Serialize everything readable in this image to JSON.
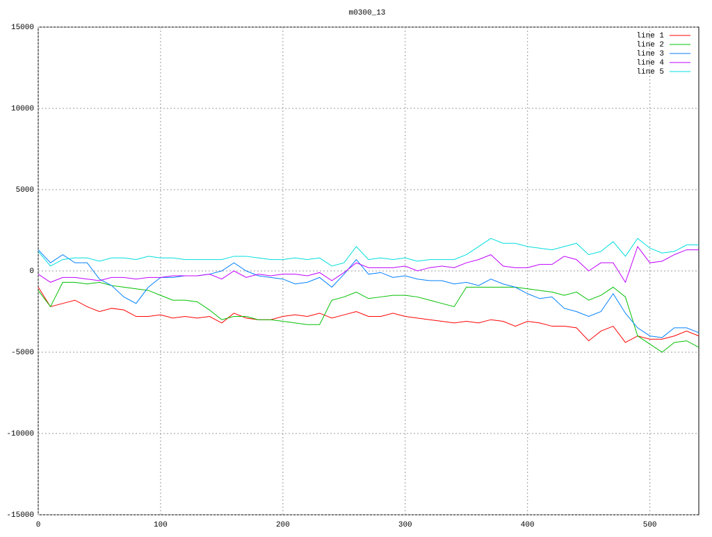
{
  "chart_data": {
    "type": "line",
    "title": "m0300_13",
    "x": [
      0,
      10,
      20,
      30,
      40,
      50,
      60,
      70,
      80,
      90,
      100,
      110,
      120,
      130,
      140,
      150,
      160,
      170,
      180,
      190,
      200,
      210,
      220,
      230,
      240,
      250,
      260,
      270,
      280,
      290,
      300,
      310,
      320,
      330,
      340,
      350,
      360,
      370,
      380,
      390,
      400,
      410,
      420,
      430,
      440,
      450,
      460,
      470,
      480,
      490,
      500,
      510,
      520,
      530,
      540
    ],
    "xlim": [
      0,
      540
    ],
    "xticks": [
      0,
      100,
      200,
      300,
      400,
      500
    ],
    "ylim": [
      -15000,
      15000
    ],
    "yticks": [
      -15000,
      -10000,
      -5000,
      0,
      5000,
      10000,
      15000
    ],
    "grid": true,
    "legend": "top-right",
    "series": [
      {
        "name": "line 1",
        "color": "#ff0000",
        "values": [
          -1000,
          -2200,
          -2000,
          -1800,
          -2200,
          -2500,
          -2300,
          -2400,
          -2800,
          -2800,
          -2700,
          -2900,
          -2800,
          -2900,
          -2800,
          -3200,
          -2600,
          -2900,
          -3000,
          -3000,
          -2800,
          -2700,
          -2800,
          -2600,
          -2900,
          -2700,
          -2500,
          -2800,
          -2800,
          -2600,
          -2800,
          -2900,
          -3000,
          -3100,
          -3200,
          -3100,
          -3200,
          -3000,
          -3100,
          -3400,
          -3100,
          -3200,
          -3400,
          -3400,
          -3500,
          -4300,
          -3700,
          -3400,
          -4400,
          -4000,
          -4200,
          -4200,
          -4000,
          -3700,
          -4000
        ]
      },
      {
        "name": "line 2",
        "color": "#00c000",
        "values": [
          -1200,
          -2200,
          -700,
          -700,
          -800,
          -700,
          -900,
          -1000,
          -1100,
          -1200,
          -1500,
          -1800,
          -1800,
          -1900,
          -2400,
          -3000,
          -2800,
          -2800,
          -3000,
          -3000,
          -3100,
          -3200,
          -3300,
          -3300,
          -1800,
          -1600,
          -1300,
          -1700,
          -1600,
          -1500,
          -1500,
          -1600,
          -1800,
          -2000,
          -2200,
          -1000,
          -1000,
          -1000,
          -1000,
          -1000,
          -1100,
          -1200,
          -1300,
          -1500,
          -1300,
          -1800,
          -1500,
          -1000,
          -1600,
          -4000,
          -4500,
          -5000,
          -4400,
          -4300,
          -4700
        ]
      },
      {
        "name": "line 3",
        "color": "#0080ff",
        "values": [
          1300,
          500,
          1000,
          500,
          500,
          -500,
          -900,
          -1600,
          -2000,
          -1000,
          -400,
          -400,
          -300,
          -300,
          -200,
          0,
          500,
          0,
          -300,
          -400,
          -500,
          -800,
          -700,
          -400,
          -1000,
          -200,
          700,
          -200,
          -100,
          -400,
          -300,
          -500,
          -600,
          -600,
          -800,
          -700,
          -900,
          -500,
          -800,
          -1000,
          -1400,
          -1700,
          -1600,
          -2300,
          -2500,
          -2800,
          -2500,
          -1400,
          -2600,
          -3500,
          -4000,
          -4100,
          -3500,
          -3500,
          -3800
        ]
      },
      {
        "name": "line 4",
        "color": "#c000ff",
        "values": [
          -200,
          -700,
          -400,
          -400,
          -500,
          -600,
          -400,
          -400,
          -500,
          -400,
          -400,
          -300,
          -300,
          -300,
          -200,
          -500,
          0,
          -400,
          -200,
          -300,
          -200,
          -200,
          -300,
          -100,
          -600,
          -100,
          500,
          200,
          200,
          200,
          300,
          0,
          200,
          300,
          200,
          500,
          700,
          1000,
          300,
          200,
          200,
          400,
          400,
          900,
          700,
          0,
          500,
          500,
          -700,
          1500,
          500,
          600,
          1000,
          1300,
          1300
        ]
      },
      {
        "name": "line 5",
        "color": "#00dddd",
        "values": [
          1200,
          300,
          700,
          800,
          800,
          600,
          800,
          800,
          700,
          900,
          800,
          800,
          700,
          700,
          700,
          700,
          900,
          900,
          800,
          700,
          700,
          800,
          700,
          800,
          300,
          500,
          1500,
          700,
          800,
          700,
          800,
          600,
          700,
          700,
          700,
          1000,
          1500,
          2000,
          1700,
          1700,
          1500,
          1400,
          1300,
          1500,
          1700,
          1000,
          1200,
          1800,
          900,
          2000,
          1400,
          1100,
          1200,
          1600,
          1600
        ]
      }
    ]
  }
}
